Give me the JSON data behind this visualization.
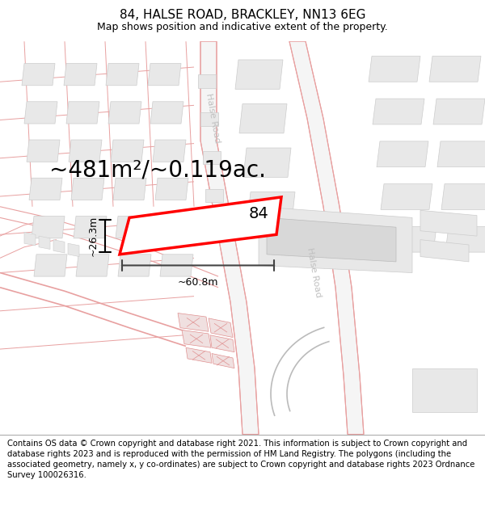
{
  "title": "84, HALSE ROAD, BRACKLEY, NN13 6EG",
  "subtitle": "Map shows position and indicative extent of the property.",
  "footer": "Contains OS data © Crown copyright and database right 2021. This information is subject to Crown copyright and database rights 2023 and is reproduced with the permission of HM Land Registry. The polygons (including the associated geometry, namely x, y co-ordinates) are subject to Crown copyright and database rights 2023 Ordnance Survey 100026316.",
  "area_label": "~481m²/~0.119ac.",
  "width_label": "~60.8m",
  "height_label": "~26.3m",
  "house_number": "84",
  "bg": "#f9f9f9",
  "road_line": "#e8a0a0",
  "road_fill": "#f5f5f5",
  "bld_fill": "#e8e8e8",
  "bld_edge": "#cccccc",
  "highlight_edge": "#ff0000",
  "road_label_color": "#c0c0c0",
  "title_fontsize": 11,
  "subtitle_fontsize": 9,
  "footer_fontsize": 7.2,
  "area_fontsize": 20,
  "measure_fontsize": 9,
  "house_num_fontsize": 14
}
